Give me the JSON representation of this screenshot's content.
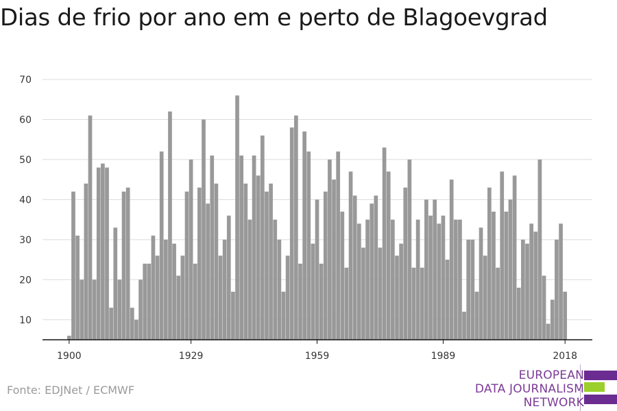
{
  "title": "Dias de frio por ano em e perto de Blagoevgrad",
  "source": "Fonte: EDJNet / ECMWF",
  "logo": {
    "lines": [
      "EUROPEAN",
      "DATA JOURNALISM",
      "NETWORK"
    ],
    "bar_colors": [
      "#6a2c91",
      "#9bcf2b",
      "#6a2c91"
    ]
  },
  "colors": {
    "bar": "#999999",
    "grid": "#dcdcdc",
    "axis": "#111111",
    "text": "#333333"
  },
  "chart_data": {
    "type": "bar",
    "title": "Dias de frio por ano em e perto de Blagoevgrad",
    "xlabel": "",
    "ylabel": "",
    "ylim": [
      5,
      71
    ],
    "yticks": [
      10,
      20,
      30,
      40,
      50,
      60,
      70
    ],
    "xticks": [
      1900,
      1929,
      1959,
      1989,
      2018
    ],
    "grid": true,
    "x": [
      1900,
      1901,
      1902,
      1903,
      1904,
      1905,
      1906,
      1907,
      1908,
      1909,
      1910,
      1911,
      1912,
      1913,
      1914,
      1915,
      1916,
      1917,
      1918,
      1919,
      1920,
      1921,
      1922,
      1923,
      1924,
      1925,
      1926,
      1927,
      1928,
      1929,
      1930,
      1931,
      1932,
      1933,
      1934,
      1935,
      1936,
      1937,
      1938,
      1939,
      1940,
      1941,
      1942,
      1943,
      1944,
      1945,
      1946,
      1947,
      1948,
      1949,
      1950,
      1951,
      1952,
      1953,
      1954,
      1955,
      1956,
      1957,
      1958,
      1959,
      1960,
      1961,
      1962,
      1963,
      1964,
      1965,
      1966,
      1967,
      1968,
      1969,
      1970,
      1971,
      1972,
      1973,
      1974,
      1975,
      1976,
      1977,
      1978,
      1979,
      1980,
      1981,
      1982,
      1983,
      1984,
      1985,
      1986,
      1987,
      1988,
      1989,
      1990,
      1991,
      1992,
      1993,
      1994,
      1995,
      1996,
      1997,
      1998,
      1999,
      2000,
      2001,
      2002,
      2003,
      2004,
      2005,
      2006,
      2007,
      2008,
      2009,
      2010,
      2011,
      2012,
      2013,
      2014,
      2015,
      2016,
      2017,
      2018
    ],
    "values": [
      6,
      42,
      31,
      20,
      44,
      61,
      20,
      48,
      49,
      48,
      13,
      33,
      20,
      42,
      43,
      13,
      10,
      20,
      24,
      24,
      31,
      26,
      52,
      30,
      62,
      29,
      21,
      26,
      42,
      50,
      24,
      43,
      60,
      39,
      51,
      44,
      26,
      30,
      36,
      17,
      66,
      51,
      44,
      35,
      51,
      46,
      56,
      42,
      44,
      35,
      30,
      17,
      26,
      58,
      61,
      24,
      57,
      52,
      29,
      40,
      24,
      42,
      50,
      45,
      52,
      37,
      23,
      47,
      41,
      34,
      28,
      35,
      39,
      41,
      28,
      53,
      47,
      35,
      26,
      29,
      43,
      50,
      23,
      35,
      23,
      40,
      36,
      40,
      34,
      36,
      25,
      45,
      35,
      35,
      12,
      30,
      30,
      17,
      33,
      26,
      43,
      37,
      23,
      47,
      37,
      40,
      46,
      18,
      30,
      29,
      34,
      32,
      50,
      21,
      9,
      15,
      30,
      34,
      17
    ]
  }
}
